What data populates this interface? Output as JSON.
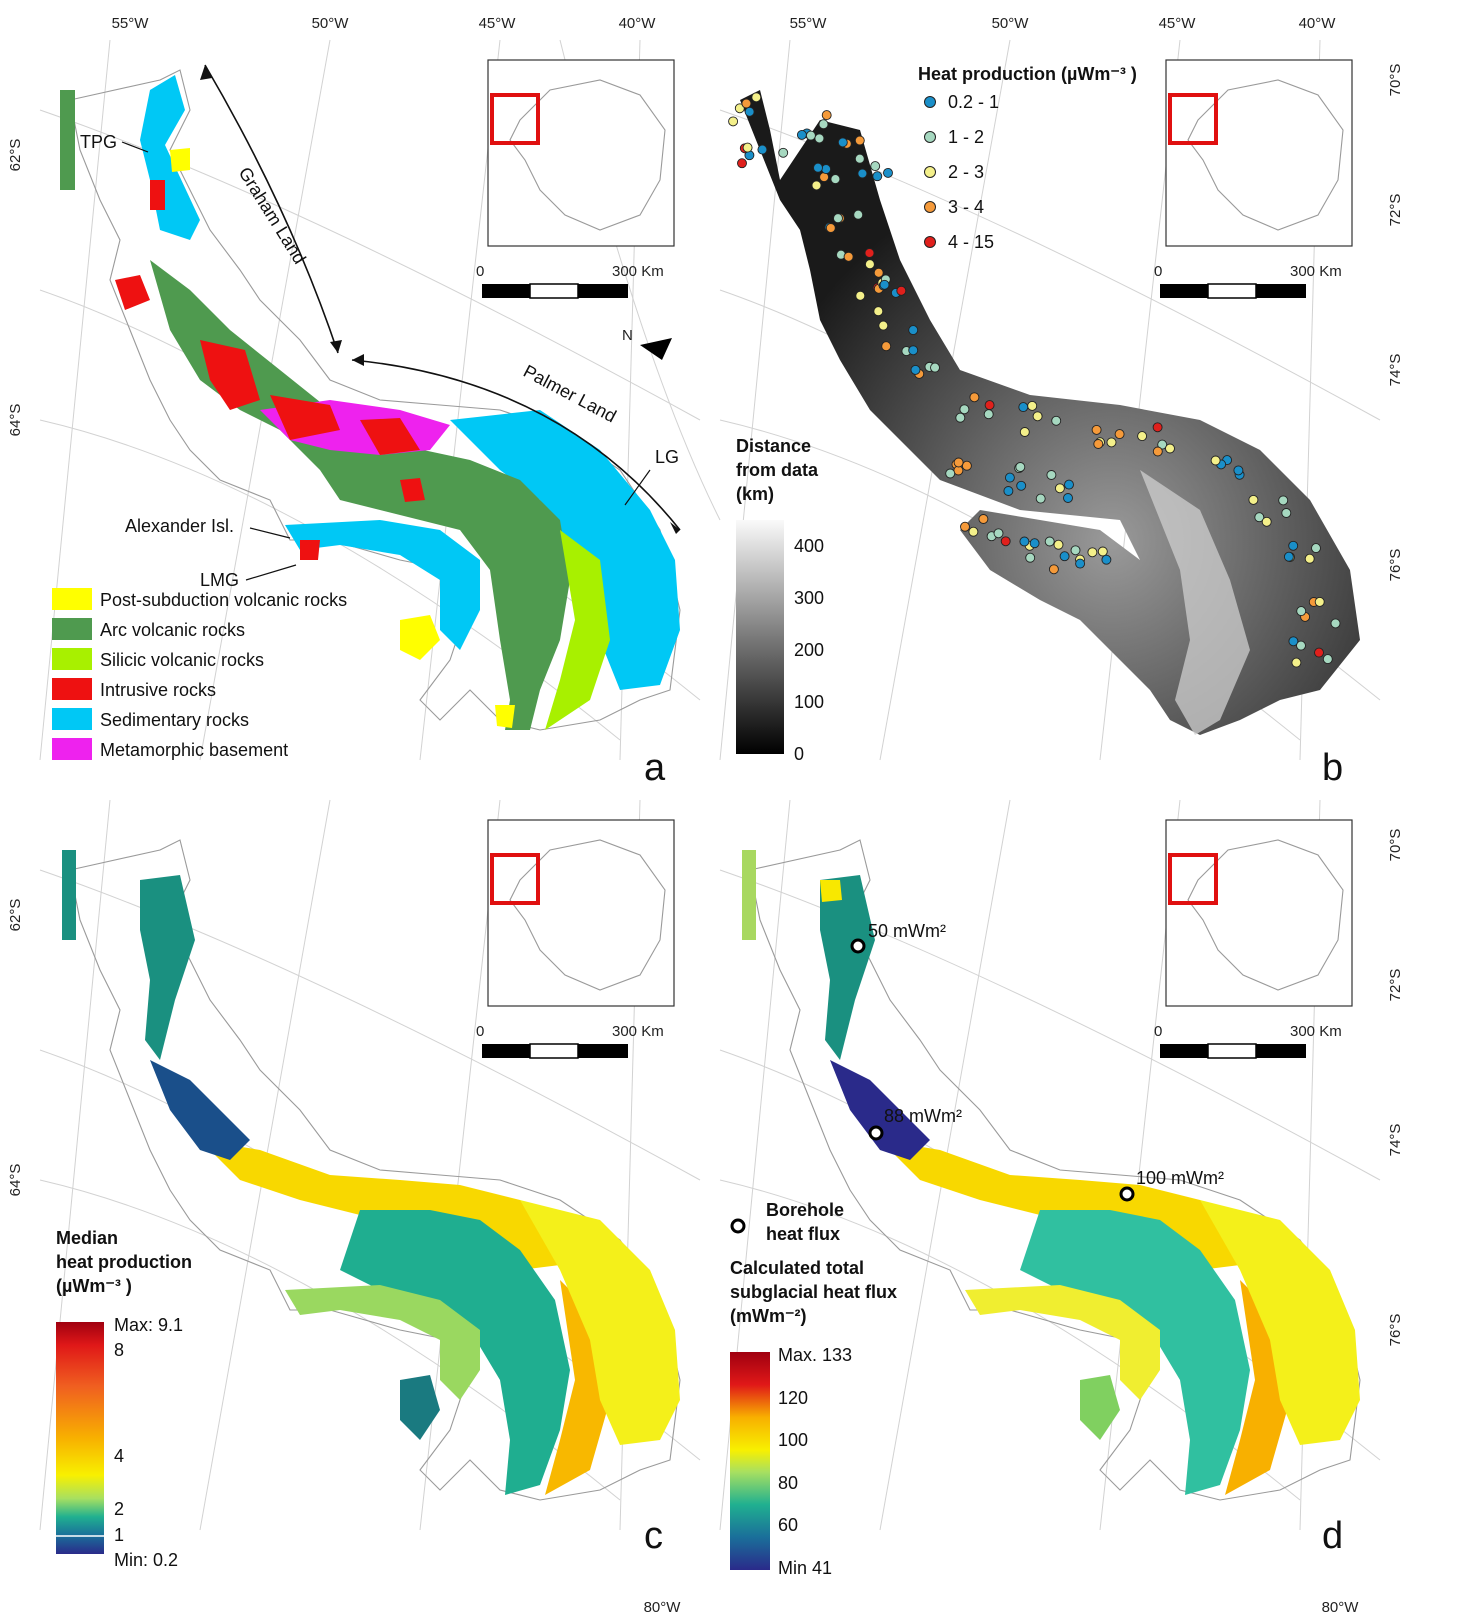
{
  "axes": {
    "lon_labels": [
      "55°W",
      "50°W",
      "45°W",
      "40°W"
    ],
    "lat_labels": [
      "62°S",
      "64°S"
    ],
    "lat_labels_right": [
      "70°S",
      "72°S",
      "74°S",
      "76°S"
    ],
    "bottom_label": "80°W"
  },
  "scalebar": {
    "start": "0",
    "end": "300 Km"
  },
  "north": "N",
  "panel_a": {
    "letter": "a",
    "labels": {
      "tpg": "TPG",
      "graham": "Graham Land",
      "palmer": "Palmer Land",
      "lg": "LG",
      "alexander": "Alexander Isl.",
      "lmg": "LMG"
    },
    "legend": [
      {
        "label": "Post-subduction volcanic rocks",
        "color": "#ffff00"
      },
      {
        "label": "Arc volcanic rocks",
        "color": "#4f9a4f"
      },
      {
        "label": "Silicic volcanic rocks",
        "color": "#a8f000"
      },
      {
        "label": "Intrusive rocks",
        "color": "#ee1111"
      },
      {
        "label": "Sedimentary rocks",
        "color": "#00c8f5"
      },
      {
        "label": "Metamorphic basement",
        "color": "#ee22ee"
      }
    ]
  },
  "panel_b": {
    "letter": "b",
    "hp_title": "Heat production (µWm⁻³ )",
    "hp_classes": [
      {
        "label": "0.2 - 1",
        "color": "#1a8fc9"
      },
      {
        "label": "1 - 2",
        "color": "#a6d8c0"
      },
      {
        "label": "2 - 3",
        "color": "#f4f08a"
      },
      {
        "label": "3 - 4",
        "color": "#f59a3a"
      },
      {
        "label": "4 - 15",
        "color": "#e0201c"
      }
    ],
    "dist_title_1": "Distance",
    "dist_title_2": "from data",
    "dist_title_3": "(km)",
    "dist_ticks": [
      "400",
      "300",
      "200",
      "100",
      "0"
    ]
  },
  "panel_c": {
    "letter": "c",
    "title_1": "Median",
    "title_2": "heat production",
    "title_3": "(µWm⁻³ )",
    "ticks": [
      "Max: 9.1",
      "8",
      "4",
      "2",
      "1",
      "Min: 0.2"
    ]
  },
  "panel_d": {
    "letter": "d",
    "boreholes": [
      "50 mWm²",
      "88 mWm²",
      "100 mWm²"
    ],
    "borehole_legend_1": "Borehole",
    "borehole_legend_2": "heat flux",
    "title_1": "Calculated total",
    "title_2": "subglacial heat flux",
    "title_3": "(mWm⁻²)",
    "ticks": [
      "Max. 133",
      "120",
      "100",
      "80",
      "60",
      "Min 41"
    ]
  }
}
